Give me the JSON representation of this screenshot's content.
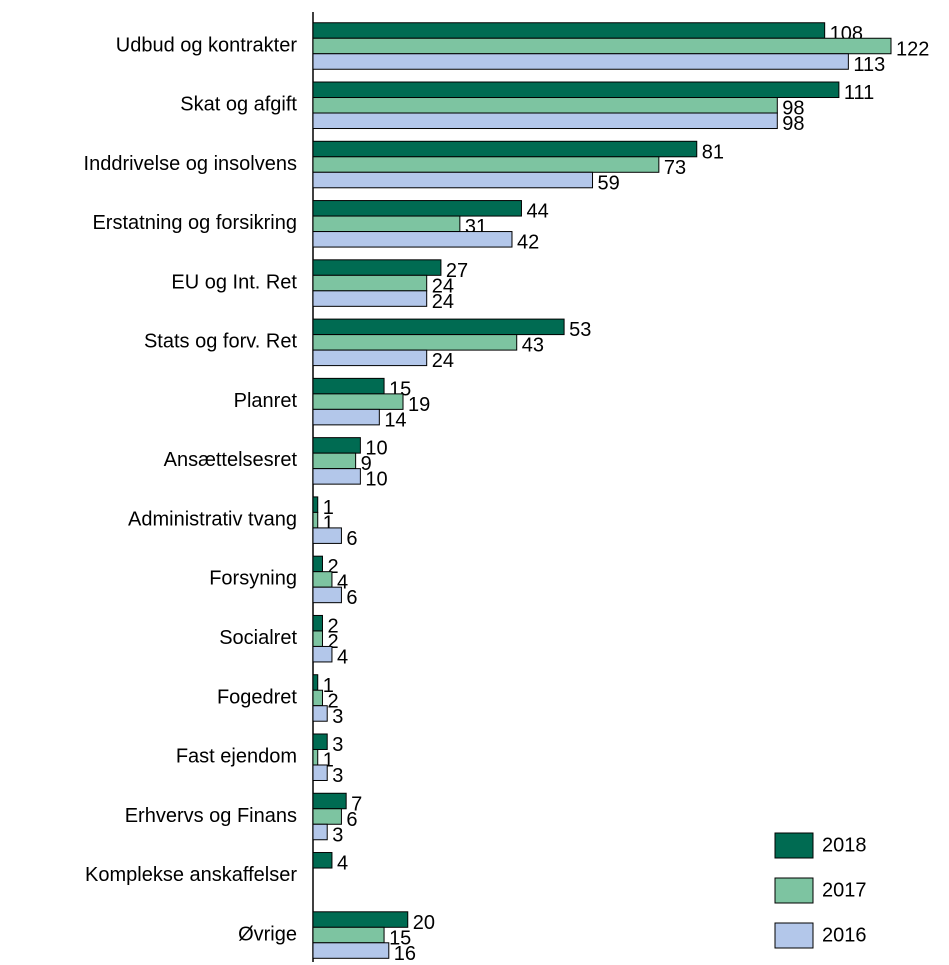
{
  "chart_data": {
    "type": "barh",
    "categories": [
      "Udbud og kontrakter",
      "Skat og afgift",
      "Inddrivelse og insolvens",
      "Erstatning og forsikring",
      "EU og Int. Ret",
      "Stats og forv. Ret",
      "Planret",
      "Ansættelsesret",
      "Administrativ tvang",
      "Forsyning",
      "Socialret",
      "Fogedret",
      "Fast ejendom",
      "Erhvervs og Finans",
      "Komplekse anskaffelser",
      "Øvrige"
    ],
    "series": [
      {
        "name": "2018",
        "color": "#006b52",
        "values": [
          108,
          111,
          81,
          44,
          27,
          53,
          15,
          10,
          1,
          2,
          2,
          1,
          3,
          7,
          4,
          20
        ]
      },
      {
        "name": "2017",
        "color": "#7dc4a1",
        "values": [
          122,
          98,
          73,
          31,
          24,
          43,
          19,
          9,
          1,
          4,
          2,
          2,
          1,
          6,
          null,
          15
        ]
      },
      {
        "name": "2016",
        "color": "#b3c7ea",
        "values": [
          113,
          98,
          59,
          42,
          24,
          24,
          14,
          10,
          6,
          6,
          4,
          3,
          3,
          3,
          null,
          16
        ]
      }
    ],
    "legend": "lower right"
  }
}
